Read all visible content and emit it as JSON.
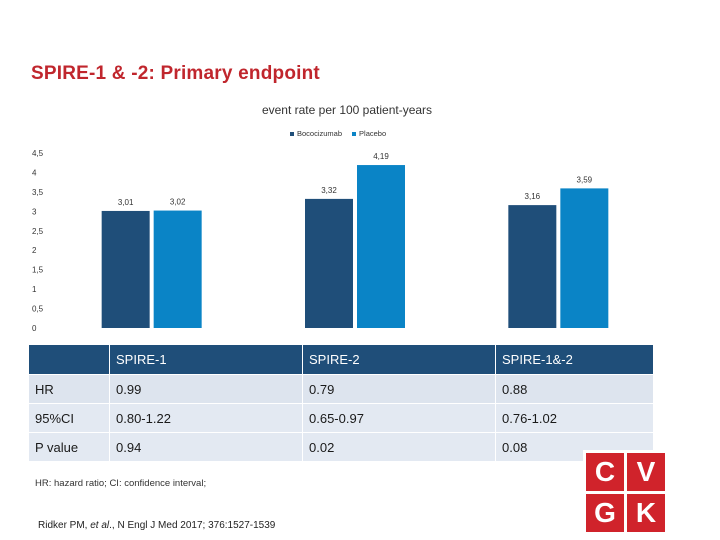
{
  "slide": {
    "title": "SPIRE-1 & -2: Primary endpoint",
    "citation_prefix": "Ridker PM, ",
    "citation_etal": "et al",
    "citation_suffix": "., N Engl J Med 2017; 376:1527-1539",
    "footnote": "HR: hazard ratio; CI: confidence interval;"
  },
  "colors": {
    "bococizumab": "#1f4e79",
    "placebo": "#0a84c6",
    "brand_red": "#d0232b",
    "table_header": "#1f4e79"
  },
  "chart_data": {
    "type": "bar",
    "title": "event rate per 100 patient-years",
    "xlabel": "",
    "ylabel": "",
    "ylim": [
      0,
      4.5
    ],
    "ytick_labels": [
      "0",
      "0,5",
      "1",
      "1,5",
      "2",
      "2,5",
      "3",
      "3,5",
      "4",
      "4,5"
    ],
    "yticks": [
      0,
      0.5,
      1,
      1.5,
      2,
      2.5,
      3,
      3.5,
      4,
      4.5
    ],
    "categories": [
      "SPIRE-1",
      "SPIRE-2",
      "SPIRE-1&-2"
    ],
    "series": [
      {
        "name": "Bococizumab",
        "values": [
          3.01,
          3.32,
          3.16
        ],
        "labels": [
          "3,01",
          "3,32",
          "3,16"
        ]
      },
      {
        "name": "Placebo",
        "values": [
          3.02,
          4.19,
          3.59
        ],
        "labels": [
          "3,02",
          "4,19",
          "3,59"
        ]
      }
    ],
    "legend_position": "top-center",
    "grid": false
  },
  "table": {
    "headers": [
      "",
      "SPIRE-1",
      "SPIRE-2",
      "SPIRE-1&-2"
    ],
    "rows": [
      [
        "HR",
        "0.99",
        "0.79",
        "0.88"
      ],
      [
        "95%CI",
        "0.80-1.22",
        "0.65-0.97",
        "0.76-1.02"
      ],
      [
        "P value",
        "0.94",
        "0.02",
        "0.08"
      ]
    ]
  },
  "logo": {
    "letters": [
      "C",
      "V",
      "G",
      "K"
    ]
  }
}
